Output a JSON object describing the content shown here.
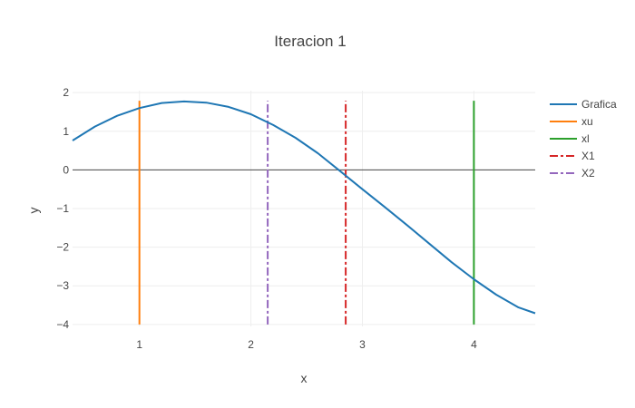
{
  "chart_data": {
    "type": "line",
    "title": "Iteracion 1",
    "xlabel": "x",
    "ylabel": "y",
    "xlim": [
      0.4,
      4.55
    ],
    "ylim": [
      -4.05,
      2.05
    ],
    "x_ticks": [
      1,
      2,
      3,
      4
    ],
    "y_ticks": [
      2,
      1,
      0,
      -1,
      -2,
      -3,
      -4
    ],
    "y_tick_labels": [
      "2",
      "1",
      "0",
      "−1",
      "−2",
      "−3",
      "−4"
    ],
    "grid": true,
    "zero_line": true,
    "legend_position": "right",
    "series": [
      {
        "name": "Grafica",
        "type": "curve",
        "color": "#1f77b4",
        "dash": "solid",
        "x": [
          0.4,
          0.6,
          0.8,
          1.0,
          1.2,
          1.4,
          1.6,
          1.8,
          2.0,
          2.2,
          2.4,
          2.6,
          2.8,
          3.0,
          3.2,
          3.4,
          3.6,
          3.8,
          4.0,
          4.2,
          4.4,
          4.55
        ],
        "y": [
          0.76,
          1.12,
          1.4,
          1.6,
          1.73,
          1.77,
          1.74,
          1.63,
          1.44,
          1.16,
          0.83,
          0.43,
          -0.03,
          -0.5,
          -0.96,
          -1.43,
          -1.91,
          -2.39,
          -2.83,
          -3.23,
          -3.56,
          -3.71
        ]
      },
      {
        "name": "xu",
        "type": "vline",
        "color": "#ff7f0e",
        "dash": "solid",
        "x": [
          1,
          1
        ],
        "y": [
          -4,
          1.79
        ]
      },
      {
        "name": "xl",
        "type": "vline",
        "color": "#2ca02c",
        "dash": "solid",
        "x": [
          4,
          4
        ],
        "y": [
          -4,
          1.79
        ]
      },
      {
        "name": "X1",
        "type": "vline",
        "color": "#d62728",
        "dash": "dashdot",
        "x": [
          2.85,
          2.85
        ],
        "y": [
          -4,
          1.79
        ]
      },
      {
        "name": "X2",
        "type": "vline",
        "color": "#9467bd",
        "dash": "dashdot",
        "x": [
          2.15,
          2.15
        ],
        "y": [
          -4,
          1.79
        ]
      }
    ]
  }
}
